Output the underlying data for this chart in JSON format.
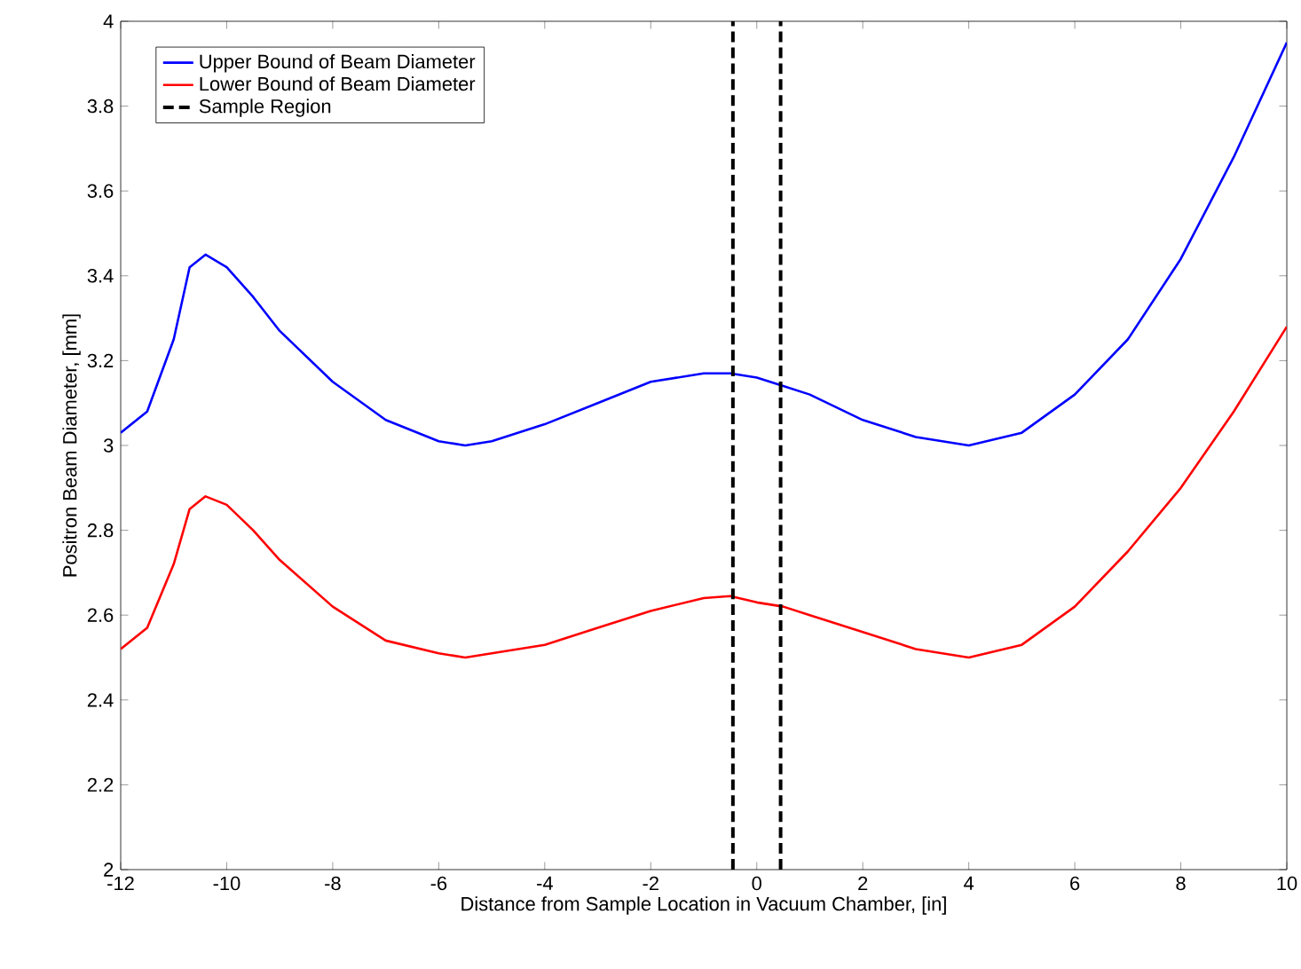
{
  "chart_data": {
    "type": "line",
    "xlabel": "Distance from Sample Location in Vacuum Chamber, [in]",
    "ylabel": "Positron Beam Diameter, [mm]",
    "xlim": [
      -12,
      10
    ],
    "ylim": [
      2,
      4
    ],
    "xticks": [
      -12,
      -10,
      -8,
      -6,
      -4,
      -2,
      0,
      2,
      4,
      6,
      8,
      10
    ],
    "yticks": [
      2,
      2.2,
      2.4,
      2.6,
      2.8,
      3,
      3.2,
      3.4,
      3.6,
      3.8,
      4
    ],
    "grid": false,
    "legend": "top left",
    "marker": "none",
    "series": [
      {
        "name": "Upper Bound of Beam Diameter",
        "color": "#0000ff",
        "line_style": "solid",
        "x": [
          -12,
          -11.5,
          -11,
          -10.7,
          -10.4,
          -10,
          -9.5,
          -9,
          -8,
          -7,
          -6,
          -5.5,
          -5,
          -4,
          -3,
          -2,
          -1,
          -0.5,
          0,
          0.5,
          1,
          2,
          3,
          4,
          5,
          6,
          7,
          8,
          9,
          10
        ],
        "values": [
          3.03,
          3.08,
          3.25,
          3.42,
          3.45,
          3.42,
          3.35,
          3.27,
          3.15,
          3.06,
          3.01,
          3.0,
          3.01,
          3.05,
          3.1,
          3.15,
          3.17,
          3.17,
          3.16,
          3.14,
          3.12,
          3.06,
          3.02,
          3.0,
          3.03,
          3.12,
          3.25,
          3.44,
          3.68,
          3.95
        ]
      },
      {
        "name": "Lower Bound of Beam Diameter",
        "color": "#ff0000",
        "line_style": "solid",
        "x": [
          -12,
          -11.5,
          -11,
          -10.7,
          -10.4,
          -10,
          -9.5,
          -9,
          -8,
          -7,
          -6,
          -5.5,
          -5,
          -4,
          -3,
          -2,
          -1,
          -0.5,
          0,
          0.5,
          1,
          2,
          3,
          4,
          5,
          6,
          7,
          8,
          9,
          10
        ],
        "values": [
          2.52,
          2.57,
          2.72,
          2.85,
          2.88,
          2.86,
          2.8,
          2.73,
          2.62,
          2.54,
          2.51,
          2.5,
          2.51,
          2.53,
          2.57,
          2.61,
          2.64,
          2.645,
          2.63,
          2.62,
          2.6,
          2.56,
          2.52,
          2.5,
          2.53,
          2.62,
          2.75,
          2.9,
          3.08,
          3.28
        ]
      },
      {
        "name": "Sample Region",
        "color": "#000000",
        "line_style": "dashed",
        "x": [
          -0.45,
          -0.45,
          null,
          0.45,
          0.45
        ],
        "values": [
          2,
          4,
          null,
          2,
          4
        ]
      }
    ]
  }
}
